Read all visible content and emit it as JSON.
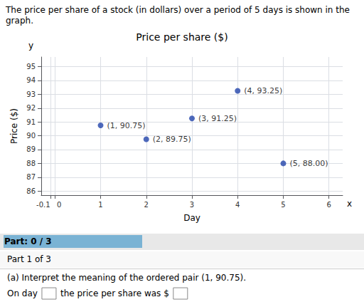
{
  "chart_data": {
    "type": "scatter",
    "title": "Price per share ($)",
    "subtitle": "The price per share of a stock (in dollars) over a period of 5 days is shown in the graph.",
    "xlabel": "Day",
    "ylabel": "Price ($)",
    "x": [
      1,
      2,
      3,
      4,
      5
    ],
    "values": [
      90.75,
      89.75,
      91.25,
      93.25,
      88.0
    ],
    "value_labels": [
      "(1, 90.75)",
      "(2, 89.75)",
      "(3, 91.25)",
      "(4, 93.25)",
      "(5, 88.00)"
    ],
    "color": "#2244aa",
    "xlim": [
      -0.3,
      6.3
    ],
    "xticks": [
      -0.1,
      0,
      1,
      2,
      3,
      4,
      5,
      6
    ],
    "ylim": [
      85.7,
      95.7
    ],
    "yticks": [
      86,
      87,
      88,
      89,
      90,
      91,
      92,
      93,
      94,
      95
    ],
    "grid": true,
    "annotations": [
      "y",
      "x",
      "Part: 0 / 3",
      "Part 1 of 3",
      "(a) Interpret the meaning of the ordered pair (1, 90.75).",
      "On day",
      "the price per share was $"
    ]
  }
}
